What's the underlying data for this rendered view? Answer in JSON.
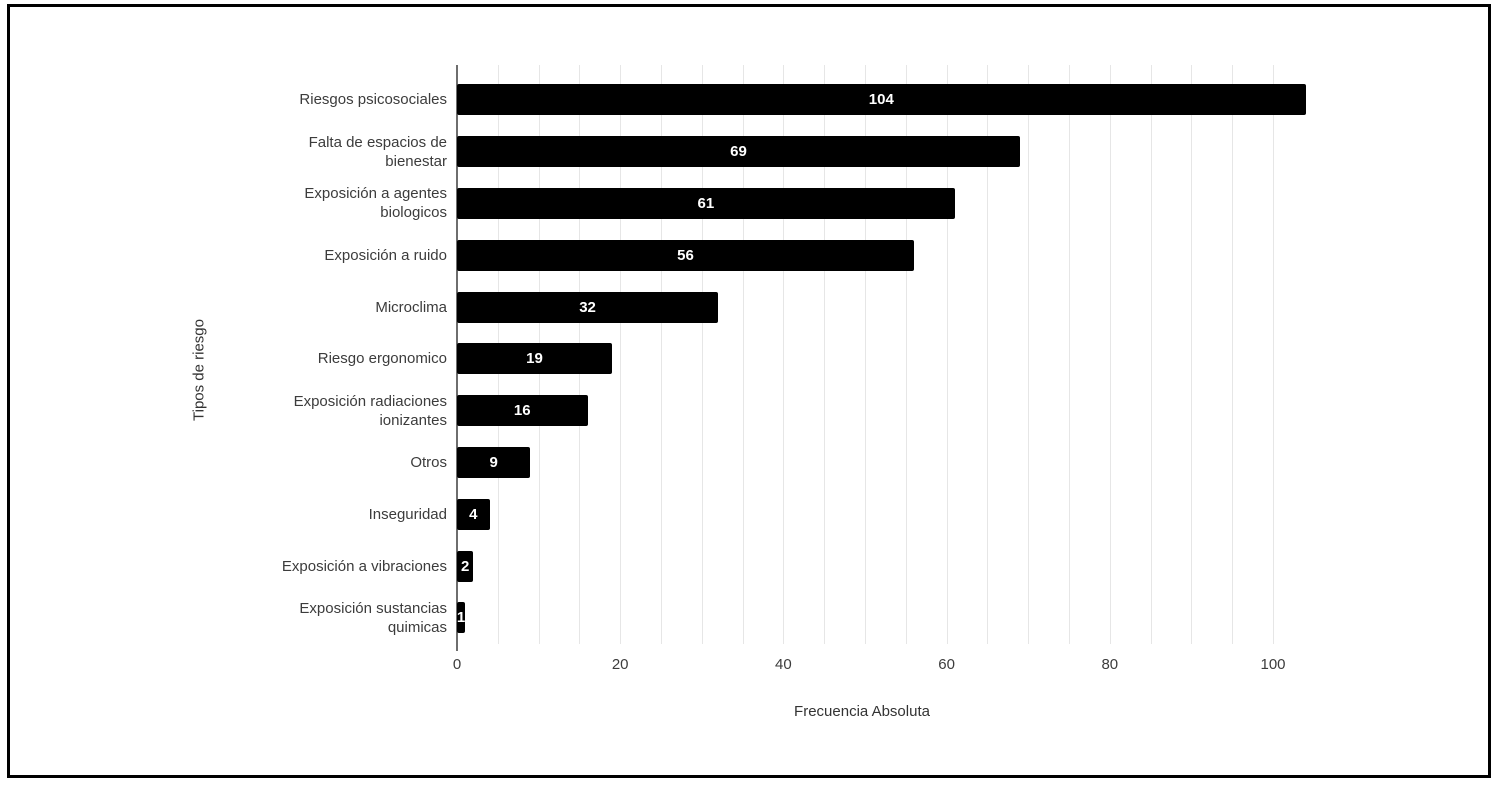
{
  "page": {
    "background": "#ffffff",
    "border_color": "#000000"
  },
  "chart_data": {
    "type": "bar",
    "orientation": "horizontal",
    "title": "",
    "xlabel": "Frecuencia Absoluta",
    "ylabel": "Tipos de riesgo",
    "categories": [
      "Riesgos psicosociales",
      "Falta de espacios de\nbienestar",
      "Exposición a agentes\nbiologicos",
      "Exposición a ruido",
      "Microclima",
      "Riesgo ergonomico",
      "Exposición radiaciones\nionizantes",
      "Otros",
      "Inseguridad",
      "Exposición a vibraciones",
      "Exposición sustancias\nquimicas"
    ],
    "values": [
      104,
      69,
      61,
      56,
      32,
      19,
      16,
      9,
      4,
      2,
      1
    ],
    "xticks": [
      0,
      20,
      40,
      60,
      80,
      100
    ],
    "xlim": [
      0,
      110
    ],
    "gridline_step": 5,
    "grid": true,
    "legend": "none",
    "bar_color": "#000000",
    "value_label_color": "#ffffff",
    "category_label_color": "#3c3c3c",
    "tick_label_color": "#3c3c3c",
    "gridline_color": "#e6e6e6",
    "axis_line_color": "#6e6e6e"
  }
}
